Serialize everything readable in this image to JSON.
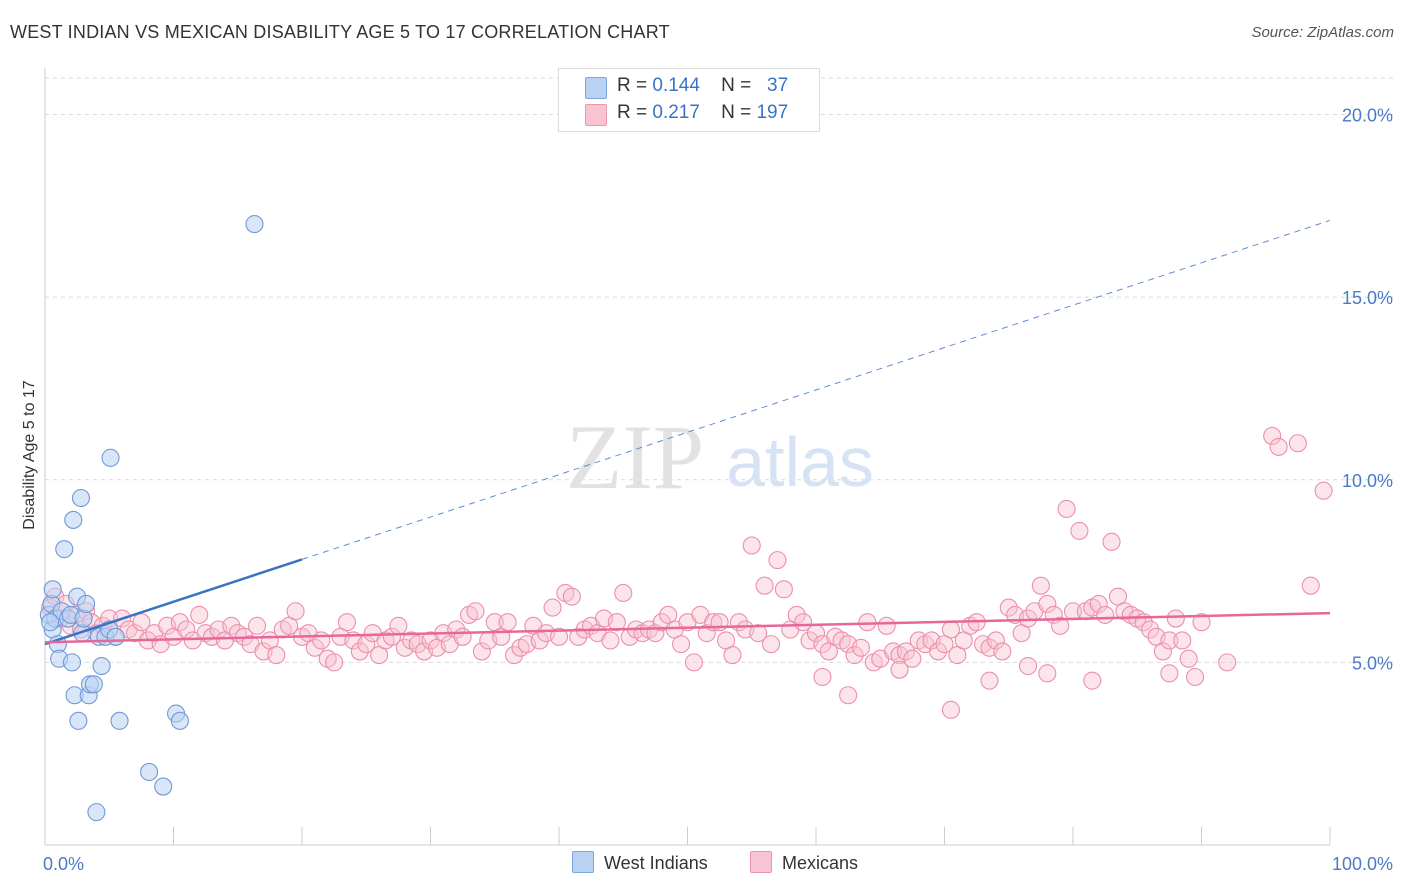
{
  "title": "WEST INDIAN VS MEXICAN DISABILITY AGE 5 TO 17 CORRELATION CHART",
  "source": "Source: ZipAtlas.com",
  "watermark": {
    "zip": "ZIP",
    "atlas": "atlas"
  },
  "legend": {
    "r_label": "R =",
    "n_label": "N =",
    "rows": [
      {
        "r": "0.144",
        "n": "37",
        "fill": "#b9d1f3",
        "stroke": "#7ea6de"
      },
      {
        "r": "0.217",
        "n": "197",
        "fill": "#f8c3d2",
        "stroke": "#eb94ae"
      }
    ]
  },
  "bottom_legend": [
    {
      "label": "West Indians",
      "fill": "#b9d1f3",
      "stroke": "#7ea6de"
    },
    {
      "label": "Mexicans",
      "fill": "#f8c3d2",
      "stroke": "#eb94ae"
    }
  ],
  "colors": {
    "blue_point": "#6f9ad8",
    "blue_fill": "rgba(185,209,243,0.55)",
    "blue_line": "#3a73c6",
    "pink_point": "#eb8fab",
    "pink_fill": "rgba(248,195,210,0.45)",
    "pink_line": "#e7679a",
    "grid": "#d9d9d9",
    "tick_label": "#4a7ac8"
  },
  "chart_data": {
    "type": "scatter",
    "title": "WEST INDIAN VS MEXICAN DISABILITY AGE 5 TO 17 CORRELATION CHART",
    "xlabel": "",
    "ylabel": "Disability Age 5 to 17",
    "xlim": [
      0,
      100
    ],
    "ylim": [
      0,
      21
    ],
    "x_tick_labels": [
      "0.0%",
      "100.0%"
    ],
    "y_ticks": [
      5,
      10,
      15,
      20
    ],
    "y_tick_labels": [
      "5.0%",
      "10.0%",
      "15.0%",
      "20.0%"
    ],
    "grid": "horizontal dashed",
    "series": [
      {
        "name": "West Indians",
        "r": 0.144,
        "n": 37,
        "trend": {
          "x0": 0,
          "y0": 5.5,
          "x1": 100,
          "y1": 17.1,
          "solid_until_x": 20
        },
        "points": [
          [
            0.3,
            6.3
          ],
          [
            0.5,
            6.6
          ],
          [
            0.6,
            7.0
          ],
          [
            0.6,
            5.9
          ],
          [
            0.8,
            6.2
          ],
          [
            1.0,
            5.5
          ],
          [
            1.1,
            5.1
          ],
          [
            1.3,
            6.4
          ],
          [
            1.5,
            8.1
          ],
          [
            1.8,
            6.2
          ],
          [
            2.0,
            6.3
          ],
          [
            2.1,
            5.0
          ],
          [
            2.2,
            8.9
          ],
          [
            2.3,
            4.1
          ],
          [
            2.5,
            6.8
          ],
          [
            2.6,
            3.4
          ],
          [
            2.8,
            9.5
          ],
          [
            2.9,
            5.8
          ],
          [
            3.0,
            6.2
          ],
          [
            3.2,
            6.6
          ],
          [
            3.4,
            4.1
          ],
          [
            3.5,
            4.4
          ],
          [
            3.8,
            4.4
          ],
          [
            4.0,
            0.9
          ],
          [
            4.2,
            5.7
          ],
          [
            4.4,
            4.9
          ],
          [
            4.7,
            5.7
          ],
          [
            5.0,
            5.9
          ],
          [
            5.1,
            10.6
          ],
          [
            5.5,
            5.7
          ],
          [
            5.8,
            3.4
          ],
          [
            8.1,
            2.0
          ],
          [
            9.2,
            1.6
          ],
          [
            10.2,
            3.6
          ],
          [
            10.5,
            3.4
          ],
          [
            16.3,
            17.0
          ],
          [
            0.4,
            6.1
          ]
        ]
      },
      {
        "name": "Mexicans",
        "r": 0.217,
        "n": 197,
        "trend": {
          "x0": 0,
          "y0": 5.55,
          "x1": 100,
          "y1": 6.35
        },
        "points": [
          [
            0.4,
            6.5
          ],
          [
            0.8,
            6.8
          ],
          [
            1.2,
            6.2
          ],
          [
            1.6,
            6.6
          ],
          [
            2.0,
            6.0
          ],
          [
            2.4,
            6.3
          ],
          [
            2.8,
            5.9
          ],
          [
            3.2,
            6.4
          ],
          [
            3.6,
            6.1
          ],
          [
            4.0,
            5.8
          ],
          [
            4.5,
            6.0
          ],
          [
            5.0,
            6.2
          ],
          [
            5.5,
            5.7
          ],
          [
            6.0,
            6.2
          ],
          [
            6.5,
            5.9
          ],
          [
            7.0,
            5.8
          ],
          [
            7.5,
            6.1
          ],
          [
            8.0,
            5.6
          ],
          [
            8.5,
            5.8
          ],
          [
            9.0,
            5.5
          ],
          [
            9.5,
            6.0
          ],
          [
            10.0,
            5.7
          ],
          [
            10.5,
            6.1
          ],
          [
            11.0,
            5.9
          ],
          [
            11.5,
            5.6
          ],
          [
            12.0,
            6.3
          ],
          [
            12.5,
            5.8
          ],
          [
            13.0,
            5.7
          ],
          [
            13.5,
            5.9
          ],
          [
            14.0,
            5.6
          ],
          [
            14.5,
            6.0
          ],
          [
            15.0,
            5.8
          ],
          [
            15.5,
            5.7
          ],
          [
            16.0,
            5.5
          ],
          [
            16.5,
            6.0
          ],
          [
            17.0,
            5.3
          ],
          [
            17.5,
            5.6
          ],
          [
            18.0,
            5.2
          ],
          [
            18.5,
            5.9
          ],
          [
            19.0,
            6.0
          ],
          [
            19.5,
            6.4
          ],
          [
            20.0,
            5.7
          ],
          [
            20.5,
            5.8
          ],
          [
            21.0,
            5.4
          ],
          [
            21.5,
            5.6
          ],
          [
            22.0,
            5.1
          ],
          [
            22.5,
            5.0
          ],
          [
            23.0,
            5.7
          ],
          [
            23.5,
            6.1
          ],
          [
            24.0,
            5.6
          ],
          [
            24.5,
            5.3
          ],
          [
            25.0,
            5.5
          ],
          [
            25.5,
            5.8
          ],
          [
            26.0,
            5.2
          ],
          [
            26.5,
            5.6
          ],
          [
            27.0,
            5.7
          ],
          [
            27.5,
            6.0
          ],
          [
            28.0,
            5.4
          ],
          [
            28.5,
            5.6
          ],
          [
            29.0,
            5.5
          ],
          [
            29.5,
            5.3
          ],
          [
            30.0,
            5.6
          ],
          [
            30.5,
            5.4
          ],
          [
            31.0,
            5.8
          ],
          [
            31.5,
            5.5
          ],
          [
            32.0,
            5.9
          ],
          [
            32.5,
            5.7
          ],
          [
            33.0,
            6.3
          ],
          [
            33.5,
            6.4
          ],
          [
            34.0,
            5.3
          ],
          [
            34.5,
            5.6
          ],
          [
            35.0,
            6.1
          ],
          [
            35.5,
            5.7
          ],
          [
            36.0,
            6.1
          ],
          [
            36.5,
            5.2
          ],
          [
            37.0,
            5.4
          ],
          [
            37.5,
            5.5
          ],
          [
            38.0,
            6.0
          ],
          [
            38.5,
            5.6
          ],
          [
            39.0,
            5.8
          ],
          [
            39.5,
            6.5
          ],
          [
            40.0,
            5.7
          ],
          [
            40.5,
            6.9
          ],
          [
            41.0,
            6.8
          ],
          [
            41.5,
            5.7
          ],
          [
            42.0,
            5.9
          ],
          [
            42.5,
            6.0
          ],
          [
            43.0,
            5.8
          ],
          [
            43.5,
            6.2
          ],
          [
            44.0,
            5.6
          ],
          [
            44.5,
            6.1
          ],
          [
            45.0,
            6.9
          ],
          [
            45.5,
            5.7
          ],
          [
            46.0,
            5.9
          ],
          [
            46.5,
            5.8
          ],
          [
            47.0,
            5.9
          ],
          [
            47.5,
            5.8
          ],
          [
            48.0,
            6.1
          ],
          [
            48.5,
            6.3
          ],
          [
            49.0,
            5.9
          ],
          [
            49.5,
            5.5
          ],
          [
            50.0,
            6.1
          ],
          [
            50.5,
            5.0
          ],
          [
            51.0,
            6.3
          ],
          [
            51.5,
            5.8
          ],
          [
            52.0,
            6.1
          ],
          [
            52.5,
            6.1
          ],
          [
            53.0,
            5.6
          ],
          [
            53.5,
            5.2
          ],
          [
            54.0,
            6.1
          ],
          [
            54.5,
            5.9
          ],
          [
            55.0,
            8.2
          ],
          [
            55.5,
            5.8
          ],
          [
            56.0,
            7.1
          ],
          [
            56.5,
            5.5
          ],
          [
            57.0,
            7.8
          ],
          [
            57.5,
            7.0
          ],
          [
            58.0,
            5.9
          ],
          [
            58.5,
            6.3
          ],
          [
            59.0,
            6.1
          ],
          [
            59.5,
            5.6
          ],
          [
            60.0,
            5.8
          ],
          [
            60.5,
            5.5
          ],
          [
            61.0,
            5.3
          ],
          [
            61.5,
            5.7
          ],
          [
            62.0,
            5.6
          ],
          [
            62.5,
            5.5
          ],
          [
            63.0,
            5.2
          ],
          [
            63.5,
            5.4
          ],
          [
            64.0,
            6.1
          ],
          [
            64.5,
            5.0
          ],
          [
            65.0,
            5.1
          ],
          [
            65.5,
            6.0
          ],
          [
            66.0,
            5.3
          ],
          [
            66.5,
            5.2
          ],
          [
            67.0,
            5.3
          ],
          [
            67.5,
            5.1
          ],
          [
            68.0,
            5.6
          ],
          [
            68.5,
            5.5
          ],
          [
            69.0,
            5.6
          ],
          [
            69.5,
            5.3
          ],
          [
            70.0,
            5.5
          ],
          [
            70.5,
            5.9
          ],
          [
            71.0,
            5.2
          ],
          [
            71.5,
            5.6
          ],
          [
            72.0,
            6.0
          ],
          [
            72.5,
            6.1
          ],
          [
            73.0,
            5.5
          ],
          [
            73.5,
            5.4
          ],
          [
            74.0,
            5.6
          ],
          [
            74.5,
            5.3
          ],
          [
            75.0,
            6.5
          ],
          [
            75.5,
            6.3
          ],
          [
            76.0,
            5.8
          ],
          [
            76.5,
            6.2
          ],
          [
            77.0,
            6.4
          ],
          [
            77.5,
            7.1
          ],
          [
            78.0,
            6.6
          ],
          [
            78.5,
            6.3
          ],
          [
            79.0,
            6.0
          ],
          [
            79.5,
            9.2
          ],
          [
            80.0,
            6.4
          ],
          [
            80.5,
            8.6
          ],
          [
            81.0,
            6.4
          ],
          [
            81.5,
            6.5
          ],
          [
            82.0,
            6.6
          ],
          [
            82.5,
            6.3
          ],
          [
            83.0,
            8.3
          ],
          [
            83.5,
            6.8
          ],
          [
            84.0,
            6.4
          ],
          [
            84.5,
            6.3
          ],
          [
            85.0,
            6.2
          ],
          [
            85.5,
            6.1
          ],
          [
            86.0,
            5.9
          ],
          [
            86.5,
            5.7
          ],
          [
            87.0,
            5.3
          ],
          [
            87.5,
            5.6
          ],
          [
            88.0,
            6.2
          ],
          [
            88.5,
            5.6
          ],
          [
            89.0,
            5.1
          ],
          [
            89.5,
            4.6
          ],
          [
            90.0,
            6.1
          ],
          [
            95.5,
            11.2
          ],
          [
            96.0,
            10.9
          ],
          [
            97.5,
            11.0
          ],
          [
            98.5,
            7.1
          ],
          [
            99.5,
            9.7
          ],
          [
            60.5,
            4.6
          ],
          [
            62.5,
            4.1
          ],
          [
            70.5,
            3.7
          ],
          [
            73.5,
            4.5
          ],
          [
            76.5,
            4.9
          ],
          [
            66.5,
            4.8
          ],
          [
            78.0,
            4.7
          ],
          [
            81.5,
            4.5
          ],
          [
            87.5,
            4.7
          ],
          [
            92.0,
            5.0
          ]
        ]
      }
    ]
  }
}
